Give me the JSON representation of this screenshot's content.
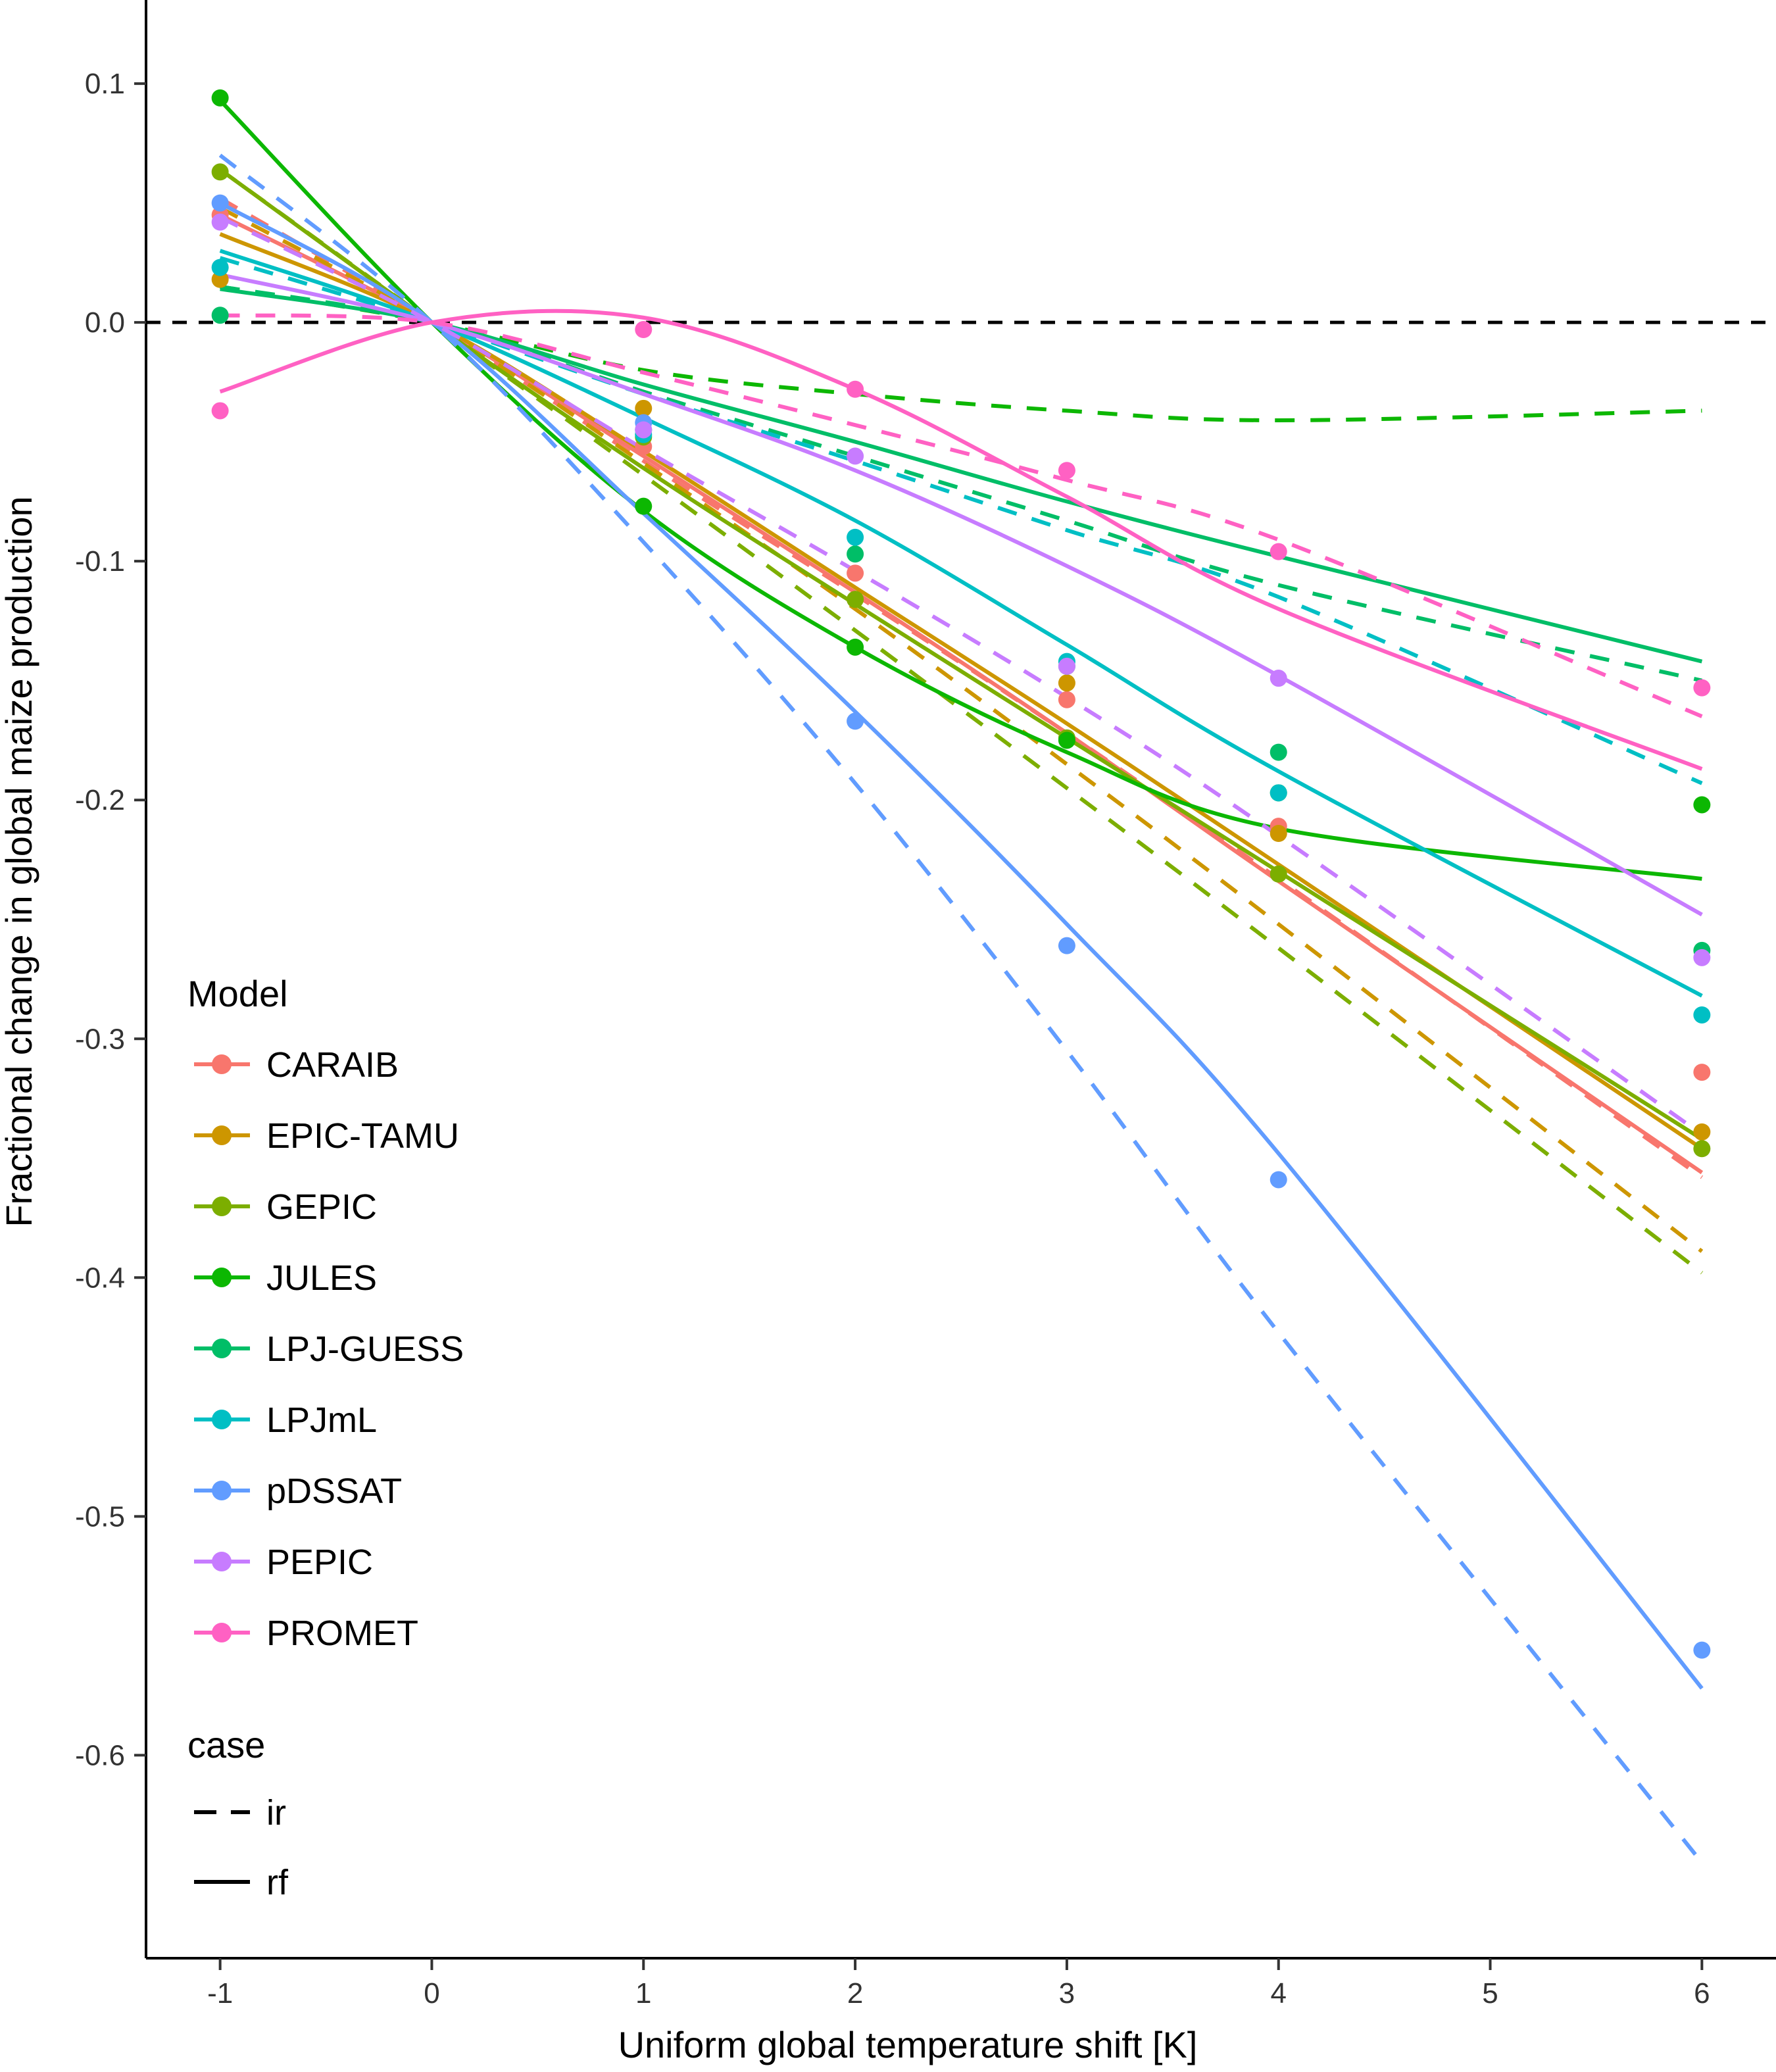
{
  "chart_data": {
    "type": "line",
    "title": "",
    "xlabel": "Uniform global temperature shift [K]",
    "ylabel": "Fractional change in global maize production",
    "xlim": [
      -1.35,
      6.35
    ],
    "ylim": [
      -0.685,
      0.135
    ],
    "xticks": [
      -1,
      0,
      1,
      2,
      3,
      4,
      5,
      6
    ],
    "yticks": [
      0.1,
      0.0,
      -0.1,
      -0.2,
      -0.3,
      -0.4,
      -0.5,
      -0.6
    ],
    "ytick_labels": [
      "0.1",
      "0.0",
      "-0.1",
      "-0.2",
      "-0.3",
      "-0.4",
      "-0.5",
      "-0.6"
    ],
    "reference_line": {
      "y": 0,
      "style": "dashed",
      "color": "#000000"
    },
    "grid": false,
    "x": [
      -1,
      0,
      1,
      2,
      3,
      4,
      6
    ],
    "legend": {
      "position": "left-bottom",
      "model_title": "Model",
      "case_title": "case",
      "cases": [
        {
          "name": "ir",
          "style": "dashed"
        },
        {
          "name": "rf",
          "style": "solid"
        }
      ]
    },
    "series": [
      {
        "name": "CARAIB",
        "color": "#F8766D",
        "points": [
          0.045,
          0,
          -0.052,
          -0.105,
          -0.158,
          -0.211,
          -0.314
        ],
        "ir": [
          0.052,
          0,
          -0.058,
          -0.114,
          -0.172,
          -0.233,
          -0.358
        ],
        "rf": [
          0.045,
          0,
          -0.056,
          -0.113,
          -0.172,
          -0.234,
          -0.356
        ]
      },
      {
        "name": "EPIC-TAMU",
        "color": "#CD9600",
        "points": [
          0.018,
          0,
          -0.036,
          -0.116,
          -0.151,
          -0.214,
          -0.339
        ],
        "ir": [
          0.048,
          0,
          -0.059,
          -0.12,
          -0.185,
          -0.252,
          -0.389
        ],
        "rf": [
          0.037,
          0,
          -0.054,
          -0.111,
          -0.168,
          -0.227,
          -0.346
        ]
      },
      {
        "name": "GEPIC",
        "color": "#7CAE00",
        "points": [
          0.063,
          0,
          -0.048,
          -0.116,
          -0.174,
          -0.231,
          -0.346
        ],
        "ir": [
          0.064,
          0,
          -0.064,
          -0.129,
          -0.195,
          -0.262,
          -0.398
        ],
        "rf": [
          0.064,
          0,
          -0.061,
          -0.118,
          -0.174,
          -0.23,
          -0.342
        ]
      },
      {
        "name": "JULES",
        "color": "#0CB702",
        "points": [
          0.094,
          0,
          -0.077,
          -0.136,
          -0.175,
          -0.197,
          -0.202
        ],
        "ir": [
          0.015,
          0,
          -0.02,
          -0.03,
          -0.037,
          -0.041,
          -0.037
        ],
        "rf": [
          0.093,
          0,
          -0.079,
          -0.136,
          -0.18,
          -0.212,
          -0.233
        ]
      },
      {
        "name": "LPJ-GUESS",
        "color": "#00BE67",
        "points": [
          0.003,
          0,
          -0.045,
          -0.097,
          -0.144,
          -0.18,
          -0.263
        ],
        "ir": [
          0.015,
          0,
          -0.029,
          -0.056,
          -0.083,
          -0.11,
          -0.15
        ],
        "rf": [
          0.014,
          0,
          -0.026,
          -0.05,
          -0.075,
          -0.098,
          -0.142
        ]
      },
      {
        "name": "LPJmL",
        "color": "#00BFC4",
        "points": [
          0.023,
          0,
          -0.047,
          -0.09,
          -0.142,
          -0.197,
          -0.29
        ],
        "ir": [
          0.027,
          0,
          -0.03,
          -0.058,
          -0.087,
          -0.115,
          -0.193
        ],
        "rf": [
          0.03,
          0,
          -0.04,
          -0.083,
          -0.135,
          -0.188,
          -0.282
        ]
      },
      {
        "name": "pDSSAT",
        "color": "#619CFF",
        "points": [
          0.05,
          0,
          -0.042,
          -0.167,
          -0.261,
          -0.359,
          -0.556
        ],
        "ir": [
          0.07,
          0,
          -0.092,
          -0.193,
          -0.305,
          -0.423,
          -0.645
        ],
        "rf": [
          0.05,
          0,
          -0.08,
          -0.163,
          -0.252,
          -0.348,
          -0.572
        ]
      },
      {
        "name": "PEPIC",
        "color": "#C77CFF",
        "points": [
          0.042,
          0,
          -0.045,
          -0.056,
          -0.144,
          -0.149,
          -0.266
        ],
        "ir": [
          0.044,
          0,
          -0.053,
          -0.104,
          -0.157,
          -0.215,
          -0.34
        ],
        "rf": [
          0.02,
          0,
          -0.03,
          -0.062,
          -0.102,
          -0.148,
          -0.248
        ]
      },
      {
        "name": "PROMET",
        "color": "#FF61C3",
        "points": [
          -0.037,
          0,
          -0.003,
          -0.028,
          -0.062,
          -0.096,
          -0.153
        ],
        "ir": [
          0.003,
          0,
          -0.021,
          -0.043,
          -0.066,
          -0.091,
          -0.165
        ],
        "rf": [
          -0.029,
          0,
          0.002,
          -0.028,
          -0.073,
          -0.12,
          -0.187
        ]
      }
    ]
  }
}
